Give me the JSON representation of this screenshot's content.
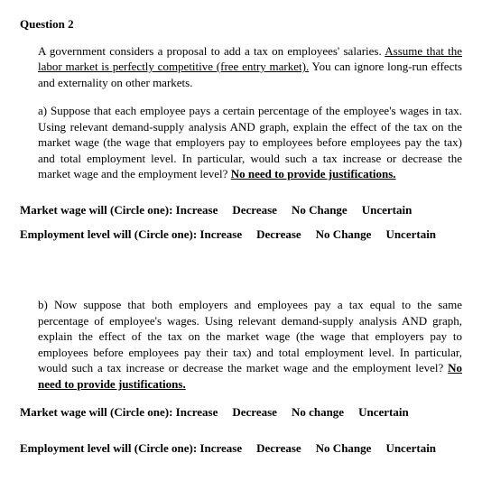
{
  "title": "Question 2",
  "intro": {
    "t1": "A government considers a proposal to add a tax on employees' salaries. ",
    "u1": "Assume that the labor market is perfectly competitive (free entry market).",
    "t2": " You can ignore long-run effects and externality on other markets."
  },
  "a": {
    "t1": "a) Suppose that each employee pays a certain percentage of the employee's wages in tax. Using relevant demand-supply analysis AND graph, explain the effect of the tax on the market wage (the wage that employers pay to employees before employees pay the tax) and total employment level. In particular, would such a tax increase or decrease the market wage and the employment level? ",
    "u1": "No need to provide justifications."
  },
  "b": {
    "t1": "b) Now suppose that both employers and employees pay a tax equal to the same percentage of employee's wages. Using relevant demand-supply analysis AND graph, explain the effect of the tax on the market wage (the wage that employers pay to employees before employees pay their tax) and total employment level. In particular, would such a tax increase or decrease the market wage and the employment level? ",
    "u1": "No need to provide justifications."
  },
  "q1": {
    "lead": "Market wage will (Circle one): Increase",
    "o1": "Decrease",
    "o2": "No Change",
    "o3": "Uncertain"
  },
  "q2": {
    "lead": "Employment level will (Circle one): Increase",
    "o1": "Decrease",
    "o2": "No Change",
    "o3": "Uncertain"
  },
  "q3": {
    "lead": "Market wage will (Circle one): Increase",
    "o1": "Decrease",
    "o2": "No change",
    "o3": "Uncertain"
  },
  "q4": {
    "lead": "Employment level will (Circle one): Increase",
    "o1": "Decrease",
    "o2": "No Change",
    "o3": "Uncertain"
  }
}
